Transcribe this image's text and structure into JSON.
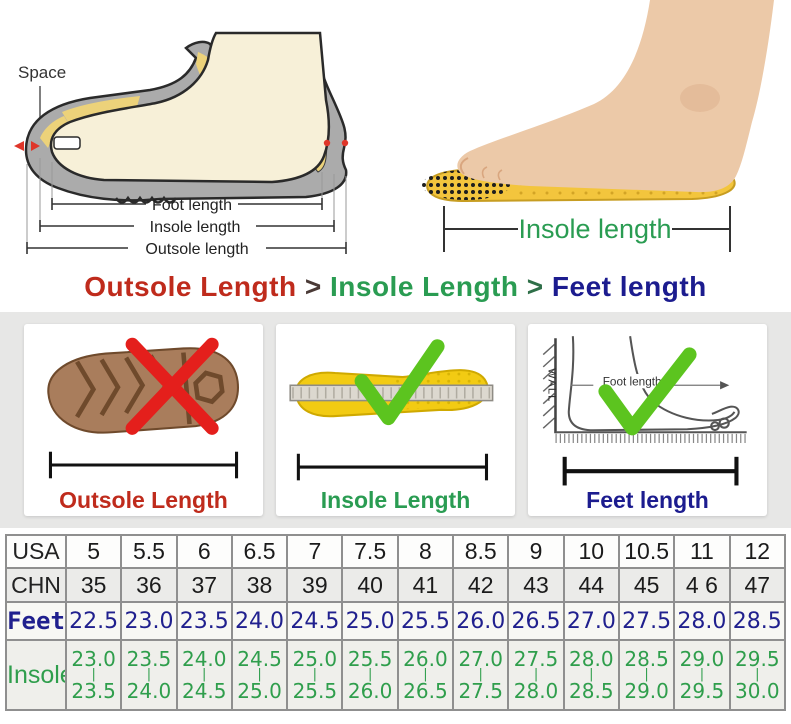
{
  "measure_diagram": {
    "space_label": "Space",
    "foot_length": "Foot length",
    "insole_length": "Insole length",
    "outsole_length": "Outsole length"
  },
  "insole_photo": {
    "caption": "Insole length"
  },
  "heading": {
    "outsole": "Outsole Length",
    "sep1": ">",
    "insole": "Insole Length",
    "sep2": ">",
    "feet": "Feet length"
  },
  "colors": {
    "heading_red": "#bf2b1c",
    "heading_green": "#2a9c52",
    "heading_blue": "#1c1c8f",
    "check_green": "#5cc41f",
    "cross_red": "#e41f1c",
    "insole_yellow": "#f2cb2a",
    "outsole_brown": "#a97d5c",
    "table_feet_blue": "#20208e",
    "table_insole_green": "#2f9e4c"
  },
  "panels": [
    {
      "caption": "Outsole Length",
      "mark": "cross"
    },
    {
      "caption": "Insole Length",
      "mark": "check"
    },
    {
      "caption": "Feet length",
      "mark": "check",
      "wall_label": "WALL",
      "arrow_label": "Foot length"
    }
  ],
  "size_table": {
    "rows": [
      {
        "key": "usa",
        "label": "USA",
        "values": [
          "5",
          "5.5",
          "6",
          "6.5",
          "7",
          "7.5",
          "8",
          "8.5",
          "9",
          "10",
          "10.5",
          "11",
          "12"
        ]
      },
      {
        "key": "chn",
        "label": "CHN",
        "values": [
          "35",
          "36",
          "37",
          "38",
          "39",
          "40",
          "41",
          "42",
          "43",
          "44",
          "45",
          "4 6",
          "47"
        ]
      },
      {
        "key": "feet",
        "label": "Feet",
        "values": [
          "22.5",
          "23.0",
          "23.5",
          "24.0",
          "24.5",
          "25.0",
          "25.5",
          "26.0",
          "26.5",
          "27.0",
          "27.5",
          "28.0",
          "28.5"
        ]
      },
      {
        "key": "insole",
        "label": "Insole",
        "ranges": [
          {
            "from": "23.0",
            "to": "23.5"
          },
          {
            "from": "23.5",
            "to": "24.0"
          },
          {
            "from": "24.0",
            "to": "24.5"
          },
          {
            "from": "24.5",
            "to": "25.0"
          },
          {
            "from": "25.0",
            "to": "25.5"
          },
          {
            "from": "25.5",
            "to": "26.0"
          },
          {
            "from": "26.0",
            "to": "26.5"
          },
          {
            "from": "27.0",
            "to": "27.5"
          },
          {
            "from": "27.5",
            "to": "28.0"
          },
          {
            "from": "28.0",
            "to": "28.5"
          },
          {
            "from": "28.5",
            "to": "29.0"
          },
          {
            "from": "29.0",
            "to": "29.5"
          },
          {
            "from": "29.5",
            "to": "30.0"
          }
        ]
      }
    ]
  }
}
